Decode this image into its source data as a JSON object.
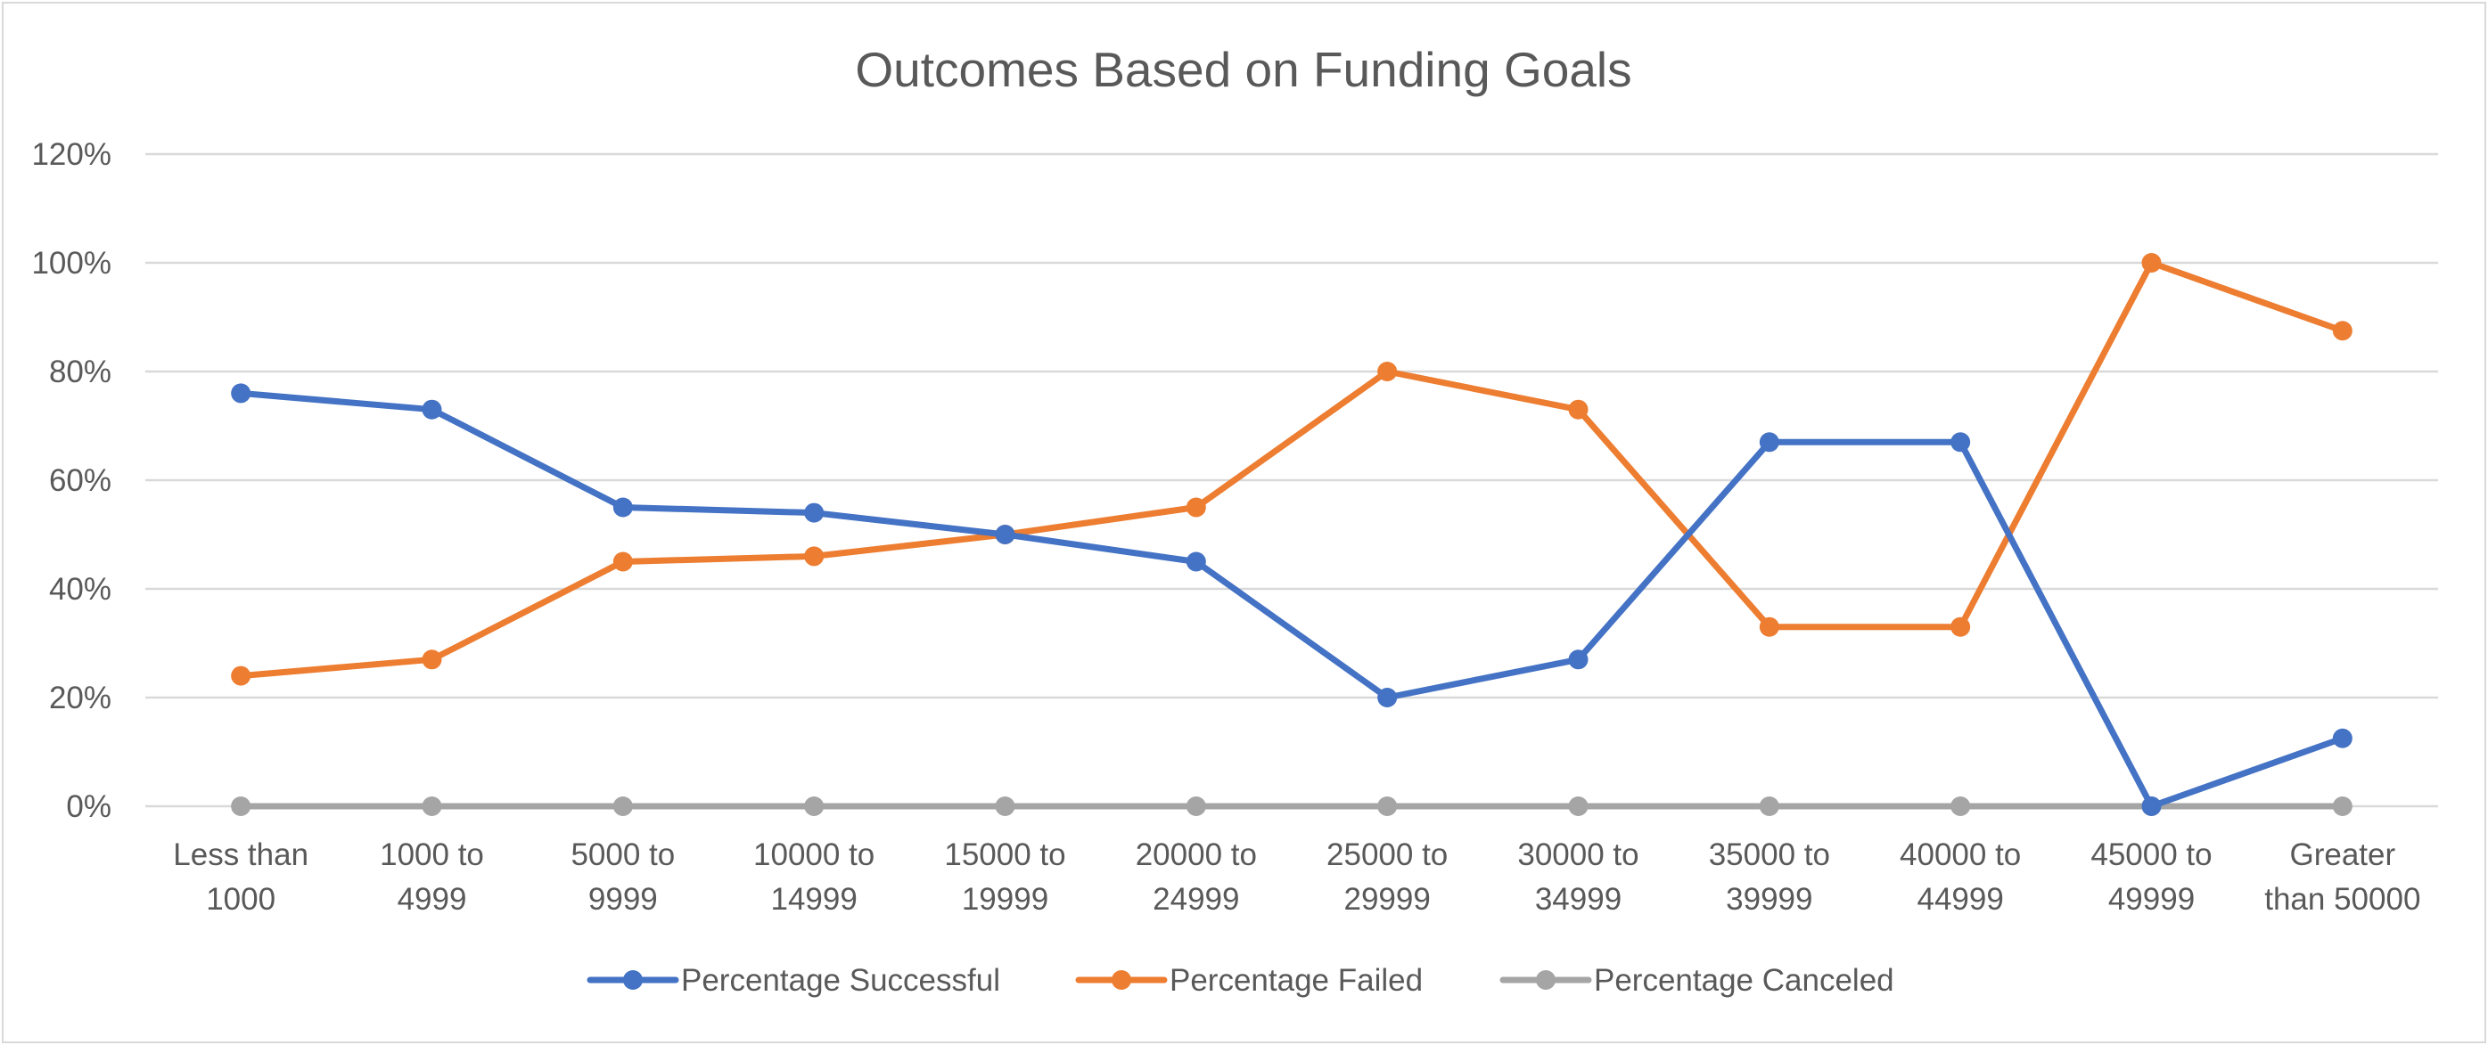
{
  "chart_data": {
    "type": "line",
    "title": "Outcomes Based on Funding Goals",
    "xlabel": "",
    "ylabel": "",
    "categories": [
      [
        "Less than",
        "1000"
      ],
      [
        "1000 to",
        "4999"
      ],
      [
        "5000 to",
        "9999"
      ],
      [
        "10000 to",
        "14999"
      ],
      [
        "15000 to",
        "19999"
      ],
      [
        "20000 to",
        "24999"
      ],
      [
        "25000 to",
        "29999"
      ],
      [
        "30000 to",
        "34999"
      ],
      [
        "35000 to",
        "39999"
      ],
      [
        "40000 to",
        "44999"
      ],
      [
        "45000 to",
        "49999"
      ],
      [
        "Greater",
        "than 50000"
      ]
    ],
    "yticks": [
      "0%",
      "20%",
      "40%",
      "60%",
      "80%",
      "100%",
      "120%"
    ],
    "ylim": [
      0,
      120
    ],
    "grid": true,
    "legend_position": "bottom",
    "series": [
      {
        "name": "Percentage Successful",
        "color": "#4472c4",
        "values": [
          76,
          73,
          55,
          54,
          50,
          45,
          20,
          27,
          67,
          67,
          0,
          12.5
        ]
      },
      {
        "name": "Percentage Failed",
        "color": "#ed7d31",
        "values": [
          24,
          27,
          45,
          46,
          50,
          55,
          80,
          73,
          33,
          33,
          100,
          87.5
        ]
      },
      {
        "name": "Percentage Canceled",
        "color": "#a5a5a5",
        "values": [
          0,
          0,
          0,
          0,
          0,
          0,
          0,
          0,
          0,
          0,
          0,
          0
        ]
      }
    ]
  }
}
